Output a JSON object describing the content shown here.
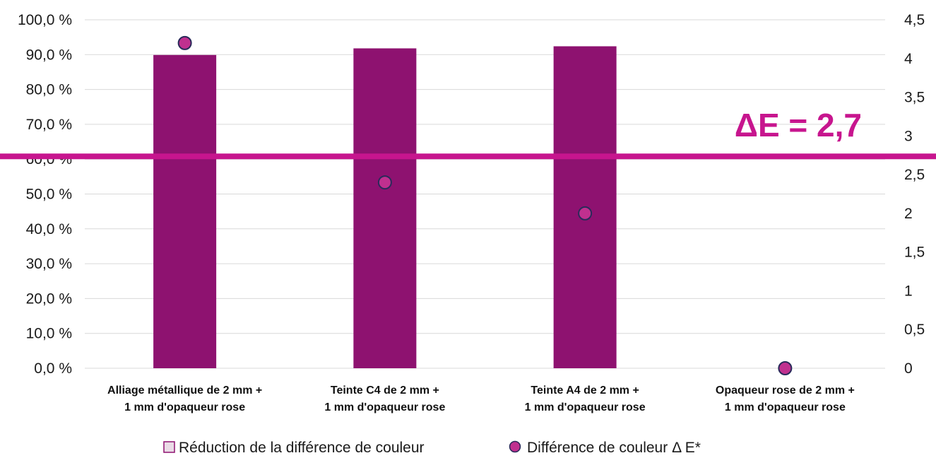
{
  "chart_data": {
    "type": "bar",
    "categories": [
      [
        "Alliage métallique de 2 mm +",
        "1 mm d'opaqueur rose"
      ],
      [
        "Teinte C4 de 2 mm +",
        "1 mm d'opaqueur rose"
      ],
      [
        "Teinte A4 de 2 mm +",
        "1 mm d'opaqueur rose"
      ],
      [
        "Opaqueur rose de 2 mm +",
        "1 mm d'opaqueur rose"
      ]
    ],
    "series": [
      {
        "name": "Réduction de la différence de couleur",
        "kind": "bar",
        "axis": "left",
        "values": [
          89.9,
          91.8,
          92.4,
          0
        ],
        "color": "#8e1270"
      },
      {
        "name": "Différence de couleur Δ E*",
        "kind": "marker",
        "axis": "right",
        "values": [
          4.2,
          2.4,
          2.0,
          0
        ],
        "color": "#c0308f",
        "stroke": "#2a2a5a"
      }
    ],
    "left_axis": {
      "min": 0,
      "max": 100,
      "step": 10,
      "ticks": [
        "0,0 %",
        "10,0 %",
        "20,0 %",
        "30,0 %",
        "40,0 %",
        "50,0 %",
        "60,0 %",
        "70,0 %",
        "80,0 %",
        "90,0 %",
        "100,0 %"
      ]
    },
    "right_axis": {
      "min": 0,
      "max": 4.5,
      "step": 0.5,
      "ticks": [
        "0",
        "0,5",
        "1",
        "1,5",
        "2",
        "2,5",
        "3",
        "3,5",
        "4",
        "4,5"
      ]
    },
    "threshold": {
      "value": 2.7,
      "axis": "right",
      "label": "ΔE = 2,7",
      "color": "#c7158e"
    },
    "grid": true,
    "legend_position": "bottom",
    "title": "",
    "xlabel": "",
    "ylabel": ""
  },
  "legend": {
    "items": [
      {
        "label": "Réduction de la différence de couleur",
        "symbol": "square",
        "color": "#eadbe6",
        "stroke": "#8e1270"
      },
      {
        "label": "Différence de couleur Δ E*",
        "symbol": "circle",
        "color": "#c0308f",
        "stroke": "#2a2a5a"
      }
    ]
  }
}
